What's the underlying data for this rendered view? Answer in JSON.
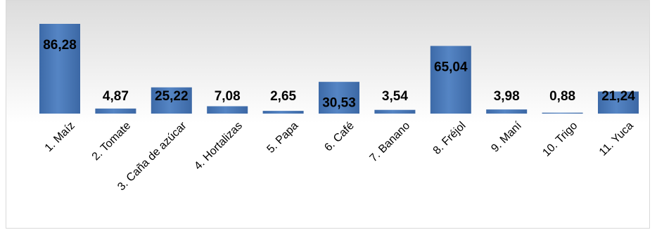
{
  "chart_data": {
    "type": "bar",
    "title": "",
    "xlabel": "",
    "ylabel": "",
    "categories": [
      "1. Maíz",
      "2. Tomate",
      "3. Caña de azúcar",
      "4. Hortalizas",
      "5. Papa",
      "6. Café",
      "7. Banano",
      "8. Fréjol",
      "9. Maní",
      "10. Trigo",
      "11. Yuca"
    ],
    "values": [
      86.28,
      4.87,
      25.22,
      7.08,
      2.65,
      30.53,
      3.54,
      65.04,
      3.98,
      0.88,
      21.24
    ],
    "value_labels": [
      "86,28",
      "4,87",
      "25,22",
      "7,08",
      "2,65",
      "30,53",
      "3,54",
      "65,04",
      "3,98",
      "0,88",
      "21,24"
    ],
    "ylim": [
      0,
      86.28
    ],
    "grid": false,
    "legend": "none",
    "bar_color": "#4a78b5"
  }
}
